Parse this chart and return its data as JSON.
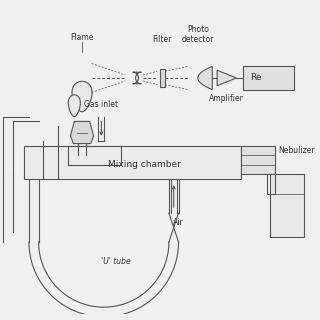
{
  "bg_color": "#f0f0f0",
  "line_color": "#555555",
  "text_color": "#333333",
  "labels": {
    "flame": "Flame",
    "filter": "Filter",
    "photo_detector": "Photo\ndetector",
    "amplifier": "Amplifier",
    "gas_inlet": "Gas inlet",
    "nebulizer": "Nebulizer",
    "mixing_chamber": "Mixing chamber",
    "u_tube": "'U' tube",
    "air": "Air",
    "recorder": "Re"
  },
  "figsize": [
    3.2,
    3.2
  ],
  "dpi": 100
}
